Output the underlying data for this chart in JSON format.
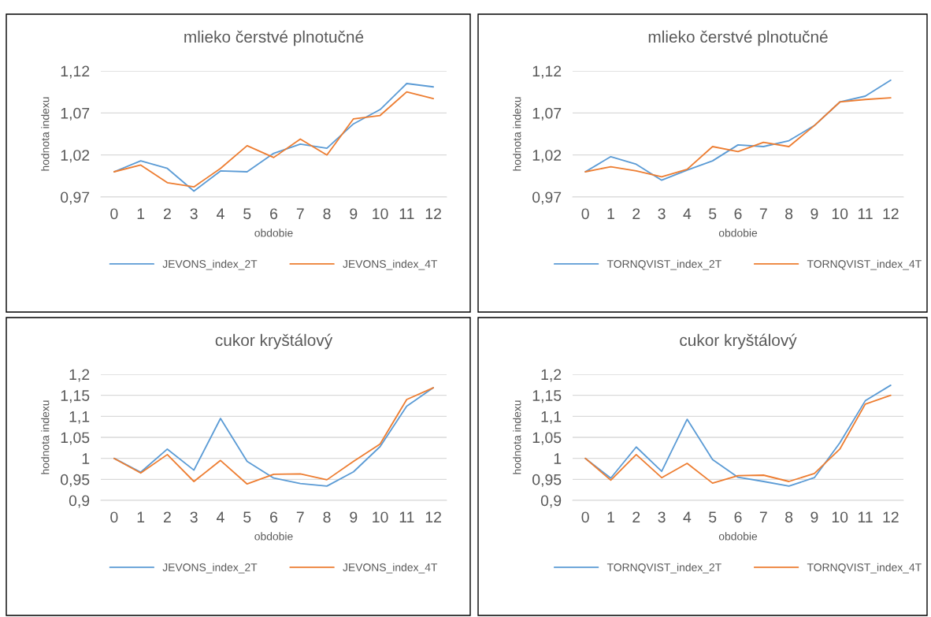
{
  "chart_data": [
    {
      "type": "line",
      "title": "mlieko čerstvé plnotučné",
      "xlabel": "obdobie",
      "ylabel": "hodnota indexu",
      "categories": [
        "0",
        "1",
        "2",
        "3",
        "4",
        "5",
        "6",
        "7",
        "8",
        "9",
        "10",
        "11",
        "12"
      ],
      "ylim": [
        0.97,
        1.12
      ],
      "yticks": [
        {
          "value": 0.97,
          "label": "0,97"
        },
        {
          "value": 1.02,
          "label": "1,02"
        },
        {
          "value": 1.07,
          "label": "1,07"
        },
        {
          "value": 1.12,
          "label": "1,12"
        }
      ],
      "grid": "y",
      "legend": "bottom",
      "series": [
        {
          "name": "JEVONS_index_2T",
          "color": "#5b9bd5",
          "values": [
            1.0,
            1.013,
            1.004,
            0.977,
            1.001,
            1.0,
            1.022,
            1.033,
            1.028,
            1.057,
            1.074,
            1.105,
            1.101
          ]
        },
        {
          "name": "JEVONS_index_4T",
          "color": "#ed7d31",
          "values": [
            1.0,
            1.008,
            0.987,
            0.982,
            1.004,
            1.031,
            1.017,
            1.039,
            1.02,
            1.063,
            1.067,
            1.095,
            1.087
          ]
        }
      ]
    },
    {
      "type": "line",
      "title": "mlieko čerstvé plnotučné",
      "xlabel": "obdobie",
      "ylabel": "hodnota indexu",
      "categories": [
        "0",
        "1",
        "2",
        "3",
        "4",
        "5",
        "6",
        "7",
        "8",
        "9",
        "10",
        "11",
        "12"
      ],
      "ylim": [
        0.97,
        1.12
      ],
      "yticks": [
        {
          "value": 0.97,
          "label": "0,97"
        },
        {
          "value": 1.02,
          "label": "1,02"
        },
        {
          "value": 1.07,
          "label": "1,07"
        },
        {
          "value": 1.12,
          "label": "1,12"
        }
      ],
      "grid": "y",
      "legend": "bottom",
      "series": [
        {
          "name": "TORNQVIST_index_2T",
          "color": "#5b9bd5",
          "values": [
            1.0,
            1.018,
            1.009,
            0.99,
            1.002,
            1.013,
            1.032,
            1.03,
            1.037,
            1.055,
            1.083,
            1.09,
            1.109
          ]
        },
        {
          "name": "TORNQVIST_index_4T",
          "color": "#ed7d31",
          "values": [
            1.0,
            1.006,
            1.001,
            0.994,
            1.003,
            1.03,
            1.024,
            1.035,
            1.03,
            1.055,
            1.083,
            1.086,
            1.088
          ]
        }
      ]
    },
    {
      "type": "line",
      "title": "cukor kryštálový",
      "xlabel": "obdobie",
      "ylabel": "hodnota indexu",
      "categories": [
        "0",
        "1",
        "2",
        "3",
        "4",
        "5",
        "6",
        "7",
        "8",
        "9",
        "10",
        "11",
        "12"
      ],
      "ylim": [
        0.9,
        1.2
      ],
      "yticks": [
        {
          "value": 0.9,
          "label": "0,9"
        },
        {
          "value": 0.95,
          "label": "0,95"
        },
        1,
        {
          "value": 1.05,
          "label": "1,05"
        },
        {
          "value": 1.1,
          "label": "1,1"
        },
        {
          "value": 1.15,
          "label": "1,15"
        },
        {
          "value": 1.2,
          "label": "1,2"
        }
      ],
      "grid": "y",
      "legend": "bottom",
      "series": [
        {
          "name": "JEVONS_index_2T",
          "color": "#5b9bd5",
          "values": [
            1.0,
            0.967,
            1.022,
            0.972,
            1.095,
            0.993,
            0.953,
            0.94,
            0.934,
            0.968,
            1.028,
            1.124,
            1.168
          ]
        },
        {
          "name": "JEVONS_index_4T",
          "color": "#ed7d31",
          "values": [
            1.0,
            0.965,
            1.009,
            0.945,
            0.995,
            0.939,
            0.962,
            0.963,
            0.949,
            0.993,
            1.034,
            1.14,
            1.168
          ]
        }
      ]
    },
    {
      "type": "line",
      "title": "cukor kryštálový",
      "xlabel": "obdobie",
      "ylabel": "hodnota indexu",
      "categories": [
        "0",
        "1",
        "2",
        "3",
        "4",
        "5",
        "6",
        "7",
        "8",
        "9",
        "10",
        "11",
        "12"
      ],
      "ylim": [
        0.9,
        1.2
      ],
      "yticks": [
        {
          "value": 0.9,
          "label": "0,9"
        },
        {
          "value": 0.95,
          "label": "0,95"
        },
        1,
        {
          "value": 1.05,
          "label": "1,05"
        },
        {
          "value": 1.1,
          "label": "1,1"
        },
        {
          "value": 1.15,
          "label": "1,15"
        },
        {
          "value": 1.2,
          "label": "1,2"
        }
      ],
      "grid": "y",
      "legend": "bottom",
      "series": [
        {
          "name": "TORNQVIST_index_2T",
          "color": "#5b9bd5",
          "values": [
            1.0,
            0.953,
            1.027,
            0.969,
            1.093,
            0.997,
            0.955,
            0.945,
            0.934,
            0.954,
            1.037,
            1.137,
            1.174
          ]
        },
        {
          "name": "TORNQVIST_index_4T",
          "color": "#ed7d31",
          "values": [
            1.0,
            0.948,
            1.009,
            0.954,
            0.988,
            0.941,
            0.959,
            0.96,
            0.945,
            0.964,
            1.022,
            1.129,
            1.15
          ]
        }
      ]
    }
  ]
}
